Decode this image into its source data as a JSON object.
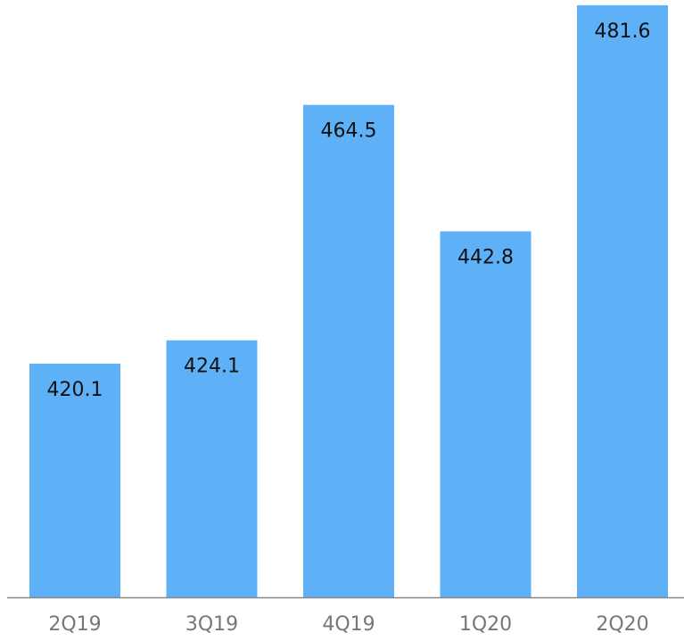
{
  "chart_data": {
    "type": "bar",
    "categories": [
      "2Q19",
      "3Q19",
      "4Q19",
      "1Q20",
      "2Q20"
    ],
    "values": [
      420.1,
      424.1,
      464.5,
      442.8,
      481.6
    ],
    "color": "#5eb1f7",
    "ylim": [
      380,
      482.5
    ]
  }
}
